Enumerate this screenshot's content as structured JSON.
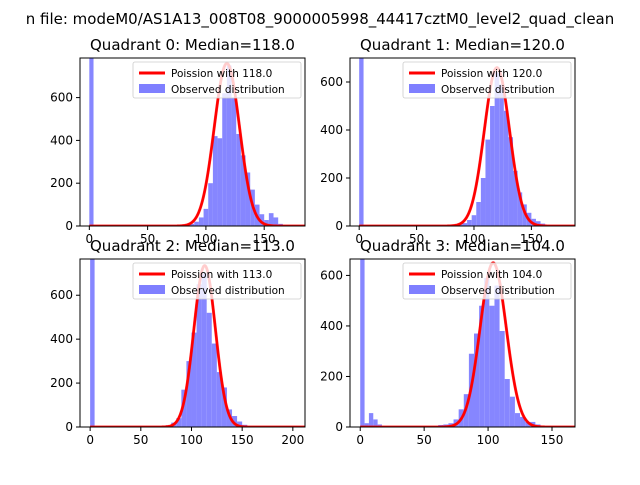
{
  "figure_title": "n file: modeM0/AS1A13_008T08_9000005998_44417cztM0_level2_quad_clean",
  "chart_data": [
    {
      "type": "histogram+line",
      "title": "Quadrant 0: Median=118.0",
      "xlim": [
        -8,
        185
      ],
      "ylim": [
        0,
        785
      ],
      "xticks": [
        0,
        50,
        100,
        150
      ],
      "yticks": [
        0,
        200,
        400,
        600
      ],
      "median": 118,
      "poisson_peak": 760,
      "legend": {
        "position": "upper right",
        "entries": [
          "Poission with 118.0",
          "Observed distribution"
        ]
      },
      "bins": [
        {
          "x0": 0,
          "x1": 3.6,
          "v": 790
        },
        {
          "x0": 82,
          "x1": 86,
          "v": 6
        },
        {
          "x0": 86,
          "x1": 90,
          "v": 10
        },
        {
          "x0": 90,
          "x1": 94,
          "v": 20
        },
        {
          "x0": 94,
          "x1": 98,
          "v": 40
        },
        {
          "x0": 98,
          "x1": 102,
          "v": 80
        },
        {
          "x0": 102,
          "x1": 106,
          "v": 200
        },
        {
          "x0": 106,
          "x1": 110,
          "v": 420
        },
        {
          "x0": 110,
          "x1": 114,
          "v": 410
        },
        {
          "x0": 114,
          "x1": 118,
          "v": 620
        },
        {
          "x0": 118,
          "x1": 122,
          "v": 750
        },
        {
          "x0": 122,
          "x1": 126,
          "v": 600
        },
        {
          "x0": 126,
          "x1": 130,
          "v": 430
        },
        {
          "x0": 130,
          "x1": 134,
          "v": 330
        },
        {
          "x0": 134,
          "x1": 138,
          "v": 250
        },
        {
          "x0": 138,
          "x1": 142,
          "v": 170
        },
        {
          "x0": 142,
          "x1": 146,
          "v": 100
        },
        {
          "x0": 146,
          "x1": 150,
          "v": 55
        },
        {
          "x0": 150,
          "x1": 154,
          "v": 28
        },
        {
          "x0": 154,
          "x1": 158,
          "v": 60
        },
        {
          "x0": 158,
          "x1": 162,
          "v": 40
        },
        {
          "x0": 162,
          "x1": 166,
          "v": 10
        }
      ]
    },
    {
      "type": "histogram+line",
      "title": "Quadrant 1: Median=120.0",
      "xlim": [
        -8,
        188
      ],
      "ylim": [
        0,
        700
      ],
      "xticks": [
        0,
        50,
        100,
        150
      ],
      "yticks": [
        0,
        200,
        400,
        600
      ],
      "median": 120,
      "poisson_peak": 660,
      "legend": {
        "position": "upper right",
        "entries": [
          "Poission with 120.0",
          "Observed distribution"
        ]
      },
      "bins": [
        {
          "x0": 0,
          "x1": 3.8,
          "v": 700
        },
        {
          "x0": 86,
          "x1": 90,
          "v": 6
        },
        {
          "x0": 90,
          "x1": 94,
          "v": 12
        },
        {
          "x0": 94,
          "x1": 98,
          "v": 25
        },
        {
          "x0": 98,
          "x1": 102,
          "v": 45
        },
        {
          "x0": 102,
          "x1": 106,
          "v": 100
        },
        {
          "x0": 106,
          "x1": 110,
          "v": 200
        },
        {
          "x0": 110,
          "x1": 114,
          "v": 360
        },
        {
          "x0": 114,
          "x1": 118,
          "v": 500
        },
        {
          "x0": 118,
          "x1": 122,
          "v": 640
        },
        {
          "x0": 122,
          "x1": 126,
          "v": 590
        },
        {
          "x0": 126,
          "x1": 130,
          "v": 480
        },
        {
          "x0": 130,
          "x1": 134,
          "v": 370
        },
        {
          "x0": 134,
          "x1": 138,
          "v": 230
        },
        {
          "x0": 138,
          "x1": 142,
          "v": 140
        },
        {
          "x0": 142,
          "x1": 146,
          "v": 90
        },
        {
          "x0": 146,
          "x1": 150,
          "v": 55
        },
        {
          "x0": 150,
          "x1": 154,
          "v": 30
        },
        {
          "x0": 154,
          "x1": 158,
          "v": 20
        },
        {
          "x0": 158,
          "x1": 162,
          "v": 10
        },
        {
          "x0": 162,
          "x1": 166,
          "v": 5
        }
      ]
    },
    {
      "type": "histogram+line",
      "title": "Quadrant 2: Median=113.0",
      "xlim": [
        -10,
        212
      ],
      "ylim": [
        0,
        765
      ],
      "xticks": [
        0,
        50,
        100,
        150,
        200
      ],
      "yticks": [
        0,
        200,
        400,
        600
      ],
      "median": 113,
      "poisson_peak": 735,
      "legend": {
        "position": "upper right",
        "entries": [
          "Poission with 113.0",
          "Observed distribution"
        ]
      },
      "bins": [
        {
          "x0": 0,
          "x1": 4.4,
          "v": 770
        },
        {
          "x0": 75,
          "x1": 80,
          "v": 8
        },
        {
          "x0": 80,
          "x1": 85,
          "v": 20
        },
        {
          "x0": 85,
          "x1": 90,
          "v": 40
        },
        {
          "x0": 90,
          "x1": 95,
          "v": 170
        },
        {
          "x0": 95,
          "x1": 100,
          "v": 300
        },
        {
          "x0": 100,
          "x1": 105,
          "v": 430
        },
        {
          "x0": 105,
          "x1": 110,
          "v": 650
        },
        {
          "x0": 110,
          "x1": 115,
          "v": 700
        },
        {
          "x0": 115,
          "x1": 120,
          "v": 520
        },
        {
          "x0": 120,
          "x1": 125,
          "v": 380
        },
        {
          "x0": 125,
          "x1": 130,
          "v": 250
        },
        {
          "x0": 130,
          "x1": 135,
          "v": 180
        },
        {
          "x0": 135,
          "x1": 140,
          "v": 80
        },
        {
          "x0": 140,
          "x1": 145,
          "v": 50
        },
        {
          "x0": 145,
          "x1": 150,
          "v": 25
        },
        {
          "x0": 150,
          "x1": 155,
          "v": 10
        }
      ]
    },
    {
      "type": "histogram+line",
      "title": "Quadrant 3: Median=104.0",
      "xlim": [
        -8,
        168
      ],
      "ylim": [
        0,
        665
      ],
      "xticks": [
        0,
        50,
        100,
        150
      ],
      "yticks": [
        0,
        200,
        400,
        600
      ],
      "median": 104,
      "poisson_peak": 650,
      "legend": {
        "position": "upper right",
        "entries": [
          "Poission with 104.0",
          "Observed distribution"
        ]
      },
      "bins": [
        {
          "x0": 0,
          "x1": 3.4,
          "v": 665
        },
        {
          "x0": 3.4,
          "x1": 6.8,
          "v": 15
        },
        {
          "x0": 6.8,
          "x1": 10.2,
          "v": 55
        },
        {
          "x0": 10.2,
          "x1": 13.6,
          "v": 30
        },
        {
          "x0": 13.6,
          "x1": 17,
          "v": 10
        },
        {
          "x0": 61,
          "x1": 65,
          "v": 8
        },
        {
          "x0": 65,
          "x1": 69,
          "v": 10
        },
        {
          "x0": 69,
          "x1": 73,
          "v": 15
        },
        {
          "x0": 73,
          "x1": 77,
          "v": 30
        },
        {
          "x0": 77,
          "x1": 81,
          "v": 70
        },
        {
          "x0": 81,
          "x1": 85,
          "v": 130
        },
        {
          "x0": 85,
          "x1": 89,
          "v": 290
        },
        {
          "x0": 89,
          "x1": 93,
          "v": 370
        },
        {
          "x0": 93,
          "x1": 97,
          "v": 480
        },
        {
          "x0": 97,
          "x1": 101,
          "v": 590
        },
        {
          "x0": 101,
          "x1": 105,
          "v": 480
        },
        {
          "x0": 105,
          "x1": 109,
          "v": 560
        },
        {
          "x0": 109,
          "x1": 113,
          "v": 380
        },
        {
          "x0": 113,
          "x1": 117,
          "v": 190
        },
        {
          "x0": 117,
          "x1": 121,
          "v": 120
        },
        {
          "x0": 121,
          "x1": 125,
          "v": 55
        },
        {
          "x0": 125,
          "x1": 129,
          "v": 40
        },
        {
          "x0": 129,
          "x1": 133,
          "v": 20
        },
        {
          "x0": 133,
          "x1": 137,
          "v": 20
        },
        {
          "x0": 137,
          "x1": 141,
          "v": 10
        }
      ]
    }
  ],
  "colors": {
    "poisson_line": "#ff0000",
    "observed_bars": "#7f7fff",
    "axis": "#000000"
  }
}
